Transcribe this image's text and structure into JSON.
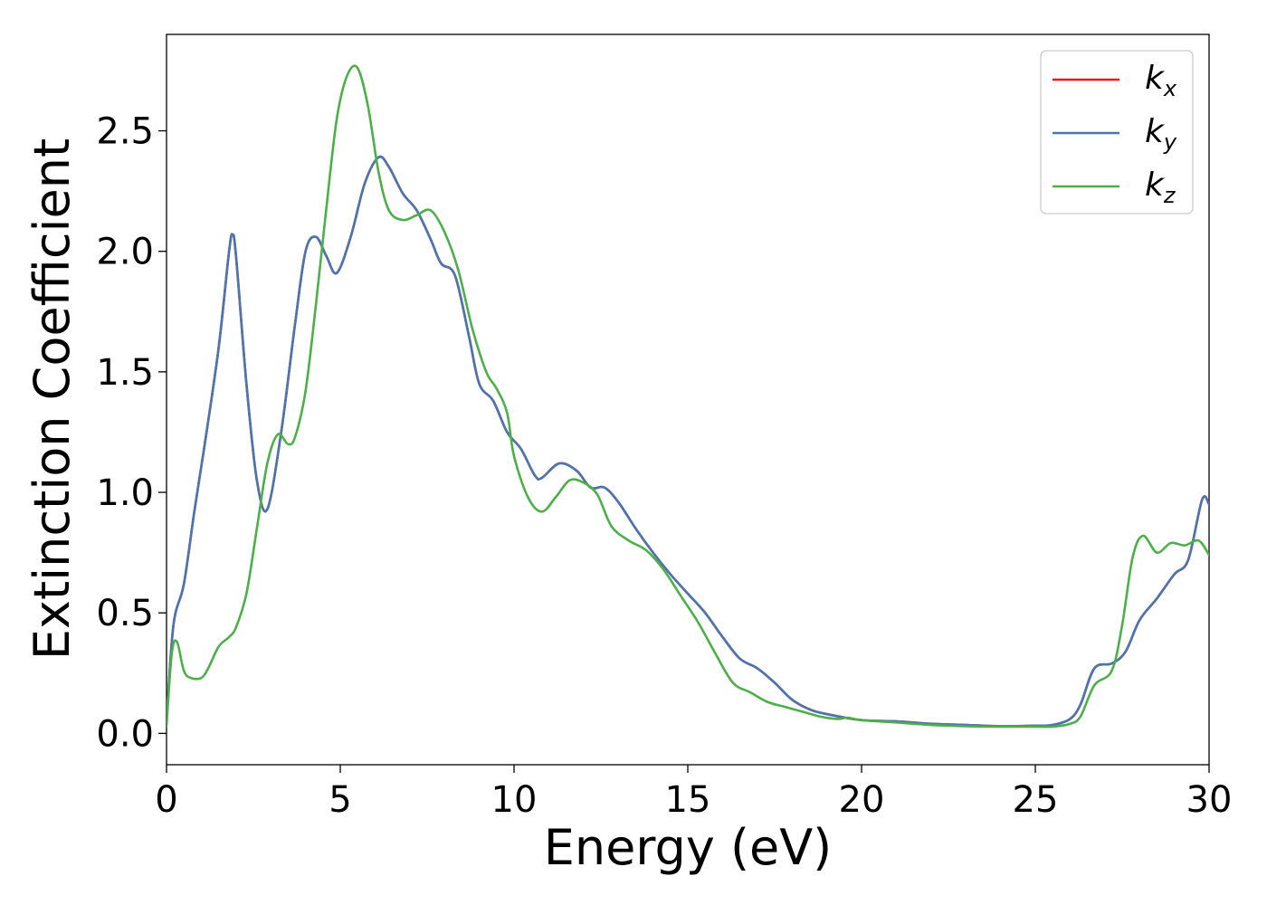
{
  "chart_data": {
    "type": "line",
    "title": "",
    "xlabel": "Energy (eV)",
    "ylabel": "Extinction Coefficient",
    "xlim": [
      0,
      30
    ],
    "ylim": [
      -0.13,
      2.9
    ],
    "xticks": [
      0,
      5,
      10,
      15,
      20,
      25,
      30
    ],
    "xtick_labels": [
      "0",
      "5",
      "10",
      "15",
      "20",
      "25",
      "30"
    ],
    "yticks": [
      0.0,
      0.5,
      1.0,
      1.5,
      2.0,
      2.5
    ],
    "ytick_labels": [
      "0.0",
      "0.5",
      "1.0",
      "1.5",
      "2.0",
      "2.5"
    ],
    "grid": false,
    "legend_position": "top-right",
    "series": [
      {
        "name": "k",
        "sub": "x",
        "color": "#e41a1c",
        "x": [
          0,
          0.2,
          0.5,
          0.8,
          1.1,
          1.5,
          1.8,
          1.9,
          2.0,
          2.3,
          2.6,
          2.9,
          3.3,
          3.7,
          4.0,
          4.3,
          4.6,
          4.9,
          5.3,
          5.7,
          6.1,
          6.4,
          6.8,
          7.2,
          7.6,
          7.9,
          8.3,
          8.7,
          9.0,
          9.4,
          9.8,
          10.2,
          10.6,
          10.8,
          11.3,
          11.8,
          12.2,
          12.6,
          13.0,
          13.5,
          14.0,
          14.5,
          15.0,
          15.5,
          16.0,
          16.5,
          17.0,
          17.5,
          18.0,
          18.5,
          19.0,
          20.0,
          21.0,
          22.0,
          23.0,
          24.0,
          25.0,
          25.5,
          26.0,
          26.3,
          26.7,
          27.2,
          27.6,
          28.0,
          28.5,
          29.0,
          29.4,
          29.8,
          30.0
        ],
        "values": [
          0.05,
          0.45,
          0.62,
          0.92,
          1.2,
          1.6,
          2.0,
          2.07,
          1.98,
          1.45,
          1.05,
          0.93,
          1.25,
          1.7,
          2.0,
          2.06,
          1.98,
          1.91,
          2.06,
          2.28,
          2.39,
          2.35,
          2.24,
          2.17,
          2.05,
          1.95,
          1.9,
          1.65,
          1.45,
          1.38,
          1.25,
          1.18,
          1.07,
          1.06,
          1.12,
          1.09,
          1.02,
          1.02,
          0.96,
          0.85,
          0.75,
          0.66,
          0.58,
          0.5,
          0.4,
          0.31,
          0.27,
          0.21,
          0.14,
          0.1,
          0.08,
          0.055,
          0.05,
          0.04,
          0.035,
          0.03,
          0.032,
          0.035,
          0.06,
          0.12,
          0.27,
          0.29,
          0.34,
          0.47,
          0.56,
          0.66,
          0.72,
          0.97,
          0.95
        ]
      },
      {
        "name": "k",
        "sub": "y",
        "color": "#4a76ad",
        "x": [
          0,
          0.2,
          0.5,
          0.8,
          1.1,
          1.5,
          1.8,
          1.9,
          2.0,
          2.3,
          2.6,
          2.9,
          3.3,
          3.7,
          4.0,
          4.3,
          4.6,
          4.9,
          5.3,
          5.7,
          6.1,
          6.4,
          6.8,
          7.2,
          7.6,
          7.9,
          8.3,
          8.7,
          9.0,
          9.4,
          9.8,
          10.2,
          10.6,
          10.8,
          11.3,
          11.8,
          12.2,
          12.6,
          13.0,
          13.5,
          14.0,
          14.5,
          15.0,
          15.5,
          16.0,
          16.5,
          17.0,
          17.5,
          18.0,
          18.5,
          19.0,
          20.0,
          21.0,
          22.0,
          23.0,
          24.0,
          25.0,
          25.5,
          26.0,
          26.3,
          26.7,
          27.2,
          27.6,
          28.0,
          28.5,
          29.0,
          29.4,
          29.8,
          30.0
        ],
        "values": [
          0.05,
          0.45,
          0.62,
          0.92,
          1.2,
          1.6,
          2.0,
          2.07,
          1.98,
          1.45,
          1.05,
          0.93,
          1.25,
          1.7,
          2.0,
          2.06,
          1.98,
          1.91,
          2.06,
          2.28,
          2.39,
          2.35,
          2.24,
          2.17,
          2.05,
          1.95,
          1.9,
          1.65,
          1.45,
          1.38,
          1.25,
          1.18,
          1.07,
          1.06,
          1.12,
          1.09,
          1.02,
          1.02,
          0.96,
          0.85,
          0.75,
          0.66,
          0.58,
          0.5,
          0.4,
          0.31,
          0.27,
          0.21,
          0.14,
          0.1,
          0.08,
          0.055,
          0.05,
          0.04,
          0.035,
          0.03,
          0.032,
          0.035,
          0.06,
          0.12,
          0.27,
          0.29,
          0.34,
          0.47,
          0.56,
          0.66,
          0.72,
          0.97,
          0.95
        ]
      },
      {
        "name": "k",
        "sub": "z",
        "color": "#4daf4a",
        "x": [
          0,
          0.15,
          0.3,
          0.5,
          0.7,
          1.0,
          1.2,
          1.5,
          1.8,
          2.0,
          2.3,
          2.6,
          2.9,
          3.2,
          3.5,
          3.7,
          4.0,
          4.3,
          4.6,
          4.9,
          5.2,
          5.5,
          5.8,
          6.1,
          6.4,
          6.8,
          7.2,
          7.6,
          8.0,
          8.4,
          8.8,
          9.2,
          9.5,
          9.8,
          10.0,
          10.4,
          10.8,
          11.2,
          11.6,
          12.0,
          12.4,
          12.8,
          13.3,
          13.8,
          14.3,
          14.8,
          15.3,
          15.8,
          16.3,
          16.8,
          17.3,
          17.8,
          18.3,
          18.8,
          19.3,
          19.6,
          20.0,
          21.0,
          22.0,
          23.0,
          24.0,
          25.0,
          25.5,
          26.0,
          26.3,
          26.7,
          27.2,
          27.5,
          27.8,
          28.1,
          28.5,
          28.9,
          29.3,
          29.7,
          30.0
        ],
        "values": [
          0.03,
          0.33,
          0.38,
          0.26,
          0.23,
          0.23,
          0.27,
          0.36,
          0.4,
          0.44,
          0.58,
          0.85,
          1.12,
          1.24,
          1.2,
          1.23,
          1.42,
          1.78,
          2.18,
          2.55,
          2.73,
          2.76,
          2.6,
          2.33,
          2.17,
          2.13,
          2.15,
          2.17,
          2.08,
          1.92,
          1.68,
          1.5,
          1.43,
          1.33,
          1.15,
          0.98,
          0.92,
          0.98,
          1.05,
          1.04,
          0.99,
          0.86,
          0.8,
          0.76,
          0.68,
          0.57,
          0.46,
          0.33,
          0.21,
          0.17,
          0.13,
          0.11,
          0.09,
          0.07,
          0.06,
          0.065,
          0.055,
          0.045,
          0.035,
          0.03,
          0.028,
          0.028,
          0.028,
          0.04,
          0.07,
          0.2,
          0.26,
          0.45,
          0.73,
          0.82,
          0.75,
          0.79,
          0.78,
          0.8,
          0.74
        ]
      }
    ]
  }
}
